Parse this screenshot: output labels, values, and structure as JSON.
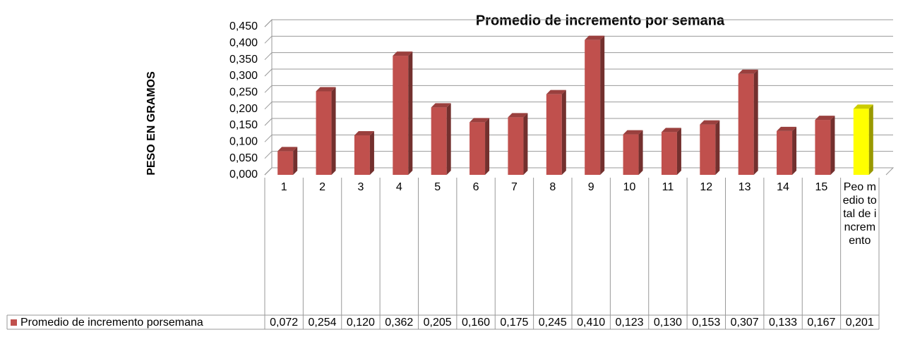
{
  "chart_data": {
    "type": "bar3d",
    "title": "Promedio de incremento por semana",
    "y_label": "PESO EN GRAMOS",
    "categories": [
      "1",
      "2",
      "3",
      "4",
      "5",
      "6",
      "7",
      "8",
      "9",
      "10",
      "11",
      "12",
      "13",
      "14",
      "15",
      "Peo medio total de incremento"
    ],
    "series": [
      {
        "name": "Promedio de incremento porsemana",
        "color": "#c0504d",
        "values": [
          0.072,
          0.254,
          0.12,
          0.362,
          0.205,
          0.16,
          0.175,
          0.245,
          0.41,
          0.123,
          0.13,
          0.153,
          0.307,
          0.133,
          0.167,
          0.201
        ],
        "value_labels": [
          "0,072",
          "0,254",
          "0,120",
          "0,362",
          "0,205",
          "0,160",
          "0,175",
          "0,245",
          "0,410",
          "0,123",
          "0,130",
          "0,153",
          "0,307",
          "0,133",
          "0,167",
          "0,201"
        ],
        "bar_colors": [
          "#c0504d",
          "#c0504d",
          "#c0504d",
          "#c0504d",
          "#c0504d",
          "#c0504d",
          "#c0504d",
          "#c0504d",
          "#c0504d",
          "#c0504d",
          "#c0504d",
          "#c0504d",
          "#c0504d",
          "#c0504d",
          "#c0504d",
          "#ffff00"
        ]
      }
    ],
    "ylim": [
      0,
      0.45
    ],
    "yticks": [
      {
        "value": 0,
        "label": "0,000"
      },
      {
        "value": 0.05,
        "label": "0,050"
      },
      {
        "value": 0.1,
        "label": "0,100"
      },
      {
        "value": 0.15,
        "label": "0,150"
      },
      {
        "value": 0.2,
        "label": "0,200"
      },
      {
        "value": 0.25,
        "label": "0,250"
      },
      {
        "value": 0.3,
        "label": "0,300"
      },
      {
        "value": 0.35,
        "label": "0,350"
      },
      {
        "value": 0.4,
        "label": "0,400"
      },
      {
        "value": 0.45,
        "label": "0,450"
      }
    ],
    "grid": true
  }
}
